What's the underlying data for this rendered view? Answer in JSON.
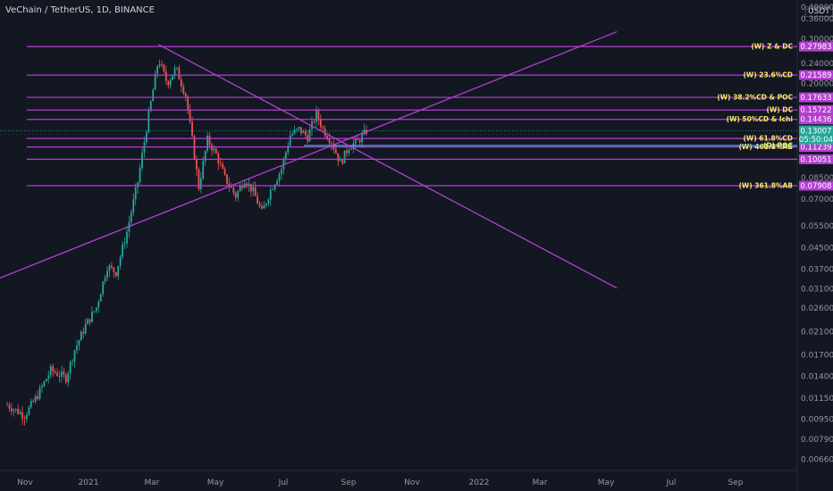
{
  "header": {
    "title": "VeChain / TetherUS, 1D, BINANCE",
    "unit": "USDT"
  },
  "colors": {
    "background": "#131722",
    "up": "#26a69a",
    "down": "#ef5350",
    "level": "#b33fd1",
    "poc": "#26c6da",
    "label_text": "#f7e967"
  },
  "chart_data": {
    "type": "candlestick",
    "yscale": "log",
    "ylim": [
      0.0062,
      0.41
    ],
    "x_ticks": [
      "Nov",
      "2021",
      "Mar",
      "May",
      "Jul",
      "Sep",
      "Nov",
      "2022",
      "Mar",
      "May",
      "Jul",
      "Sep"
    ],
    "y_ticks": [
      "0.40000",
      "0.36000",
      "0.30000",
      "0.24000",
      "0.20000",
      "0.13000",
      "0.10000",
      "0.08500",
      "0.07000",
      "0.05500",
      "0.04500",
      "0.03700",
      "0.03100",
      "0.02600",
      "0.02100",
      "0.01700",
      "0.01400",
      "0.01150",
      "0.00950",
      "0.00790",
      "0.00660"
    ],
    "horizontal_levels": [
      {
        "label": "(W) Z & DC",
        "value": "0.27983"
      },
      {
        "label": "(W) 23.6%CD",
        "value": "0.21589"
      },
      {
        "label": "(W) 38.2%CD & POC",
        "value": "0.17633"
      },
      {
        "label": "(W) DC",
        "value": "0.15722"
      },
      {
        "label": "(W) 50%CD & Ichi",
        "value": "0.14436"
      },
      {
        "label": "(W) 61.8%CD",
        "value": "0.12139"
      },
      {
        "label": "(W) 461.8%AB",
        "value": "0.11239"
      },
      {
        "label": "",
        "value": "0.10051"
      },
      {
        "label": "(W) 361.8%AB",
        "value": "0.07908"
      }
    ],
    "poc_level": {
      "label": "(D) POC",
      "value": "0.12139"
    },
    "last_price": {
      "value": "0.13007",
      "countdown": "05:50:04"
    },
    "trend_lines": [
      {
        "name": "descending",
        "from": {
          "t": 139,
          "price": 0.285
        },
        "to": {
          "t": 560,
          "price": 0.0312
        }
      },
      {
        "name": "ascending",
        "from": {
          "t": -50,
          "price": 0.0288
        },
        "to": {
          "t": 560,
          "price": 0.32
        }
      }
    ],
    "price_path": [
      {
        "t": 0,
        "price": 0.0108
      },
      {
        "t": 16,
        "price": 0.0098
      },
      {
        "t": 28,
        "price": 0.0118
      },
      {
        "t": 40,
        "price": 0.0148
      },
      {
        "t": 54,
        "price": 0.0138
      },
      {
        "t": 62,
        "price": 0.0178
      },
      {
        "t": 72,
        "price": 0.0222
      },
      {
        "t": 82,
        "price": 0.0262
      },
      {
        "t": 92,
        "price": 0.038
      },
      {
        "t": 100,
        "price": 0.036
      },
      {
        "t": 110,
        "price": 0.052
      },
      {
        "t": 120,
        "price": 0.082
      },
      {
        "t": 130,
        "price": 0.15
      },
      {
        "t": 139,
        "price": 0.25
      },
      {
        "t": 147,
        "price": 0.2
      },
      {
        "t": 155,
        "price": 0.23
      },
      {
        "t": 164,
        "price": 0.18
      },
      {
        "t": 170,
        "price": 0.12
      },
      {
        "t": 176,
        "price": 0.078
      },
      {
        "t": 184,
        "price": 0.12
      },
      {
        "t": 192,
        "price": 0.105
      },
      {
        "t": 200,
        "price": 0.085
      },
      {
        "t": 210,
        "price": 0.072
      },
      {
        "t": 218,
        "price": 0.084
      },
      {
        "t": 226,
        "price": 0.075
      },
      {
        "t": 234,
        "price": 0.062
      },
      {
        "t": 242,
        "price": 0.076
      },
      {
        "t": 252,
        "price": 0.092
      },
      {
        "t": 260,
        "price": 0.125
      },
      {
        "t": 268,
        "price": 0.132
      },
      {
        "t": 276,
        "price": 0.123
      },
      {
        "t": 284,
        "price": 0.152
      },
      {
        "t": 290,
        "price": 0.132
      },
      {
        "t": 298,
        "price": 0.118
      },
      {
        "t": 306,
        "price": 0.097
      },
      {
        "t": 314,
        "price": 0.113
      },
      {
        "t": 322,
        "price": 0.118
      },
      {
        "t": 330,
        "price": 0.13
      }
    ]
  }
}
